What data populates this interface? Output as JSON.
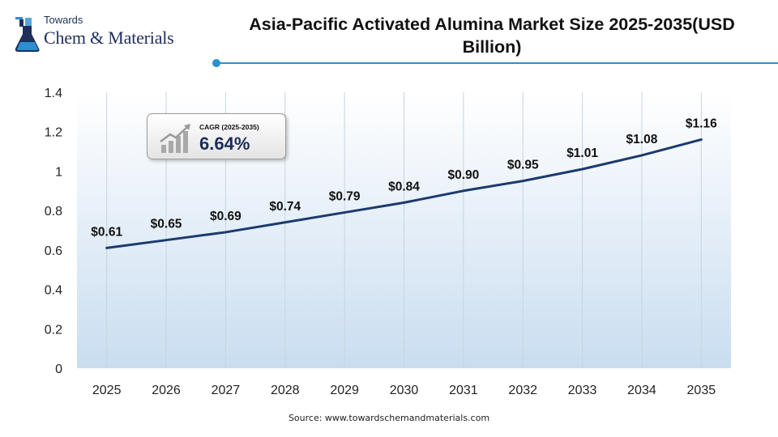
{
  "logo": {
    "line1": "Towards",
    "line2": "Chem & Materials"
  },
  "title": "Asia-Pacific Activated Alumina Market Size 2025-2035(USD Billion)",
  "cagr": {
    "label": "CAGR (2025-2035)",
    "value": "6.64%"
  },
  "source": "Source:  www.towardschemandmaterials.com",
  "colors": {
    "line": "#1b3a6e",
    "accent": "#2b8fd0",
    "brand": "#1f2f5c",
    "area_top": "#ffffff",
    "area_bottom": "#c9ddf0"
  },
  "chart_data": {
    "type": "line",
    "title": "Asia-Pacific Activated Alumina Market Size 2025-2035(USD Billion)",
    "categories": [
      "2025",
      "2026",
      "2027",
      "2028",
      "2029",
      "2030",
      "2031",
      "2032",
      "2033",
      "2034",
      "2035"
    ],
    "values": [
      0.61,
      0.65,
      0.69,
      0.74,
      0.79,
      0.84,
      0.9,
      0.95,
      1.01,
      1.08,
      1.16
    ],
    "data_labels": [
      "$0.61",
      "$0.65",
      "$0.69",
      "$0.74",
      "$0.79",
      "$0.84",
      "$0.90",
      "$0.95",
      "$1.01",
      "$1.08",
      "$1.16"
    ],
    "y_ticks": [
      "0",
      "0.2",
      "0.4",
      "0.6",
      "0.8",
      "1",
      "1.2",
      "1.4"
    ],
    "ylim": [
      0,
      1.4
    ],
    "xlabel": "",
    "ylabel": "",
    "grid": "vertical",
    "legend": "none"
  }
}
